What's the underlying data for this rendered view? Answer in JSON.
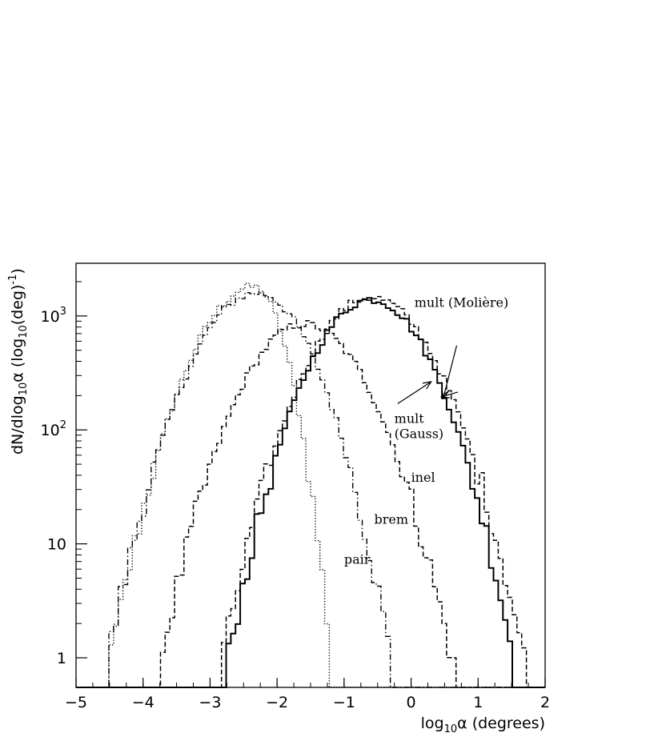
{
  "chart_data": {
    "type": "line",
    "subtype": "histogram",
    "title": "",
    "xlabel_parts": [
      "log",
      "10",
      "α (degrees)"
    ],
    "ylabel_parts": [
      "dN/dlog",
      "10",
      "α (log",
      "10",
      "(deg)",
      "-1",
      ")"
    ],
    "xlim": [
      -5,
      2
    ],
    "ylim": [
      0.55,
      2900
    ],
    "yscale": "log",
    "grid": false,
    "legend": "none",
    "x_ticks": [
      {
        "value": -5,
        "label": "−5"
      },
      {
        "value": -4,
        "label": "−4"
      },
      {
        "value": -3,
        "label": "−3"
      },
      {
        "value": -2,
        "label": "−2"
      },
      {
        "value": -1,
        "label": "−1"
      },
      {
        "value": 0,
        "label": "0"
      },
      {
        "value": 1,
        "label": "1"
      },
      {
        "value": 2,
        "label": "2"
      }
    ],
    "y_ticks": [
      {
        "value": 1,
        "base": "1",
        "exp": ""
      },
      {
        "value": 10,
        "base": "10",
        "exp": ""
      },
      {
        "value": 100,
        "base": "10",
        "exp": "2"
      },
      {
        "value": 1000,
        "base": "10",
        "exp": "3"
      }
    ],
    "series": [
      {
        "key": "pair",
        "style": "dotted",
        "peak_x": -2.35,
        "peak_y": 1800,
        "width_left": 0.55,
        "width_right": 0.3,
        "tail_left": 0.5
      },
      {
        "key": "brem",
        "style": "dashdot",
        "peak_x": -2.3,
        "peak_y": 1600,
        "width_left": 0.58,
        "width_right": 0.52,
        "tail_left": 0.5
      },
      {
        "key": "inel",
        "style": "dashed",
        "peak_x": -1.6,
        "peak_y": 850,
        "width_left": 0.58,
        "width_right": 0.6,
        "tail_left": 0.6
      },
      {
        "key": "mult_gauss",
        "style": "solid",
        "peak_x": -0.6,
        "peak_y": 1400,
        "width_left": 0.56,
        "width_right": 0.56,
        "tail_left": 0.6
      },
      {
        "key": "mult_moliere",
        "style": "dashed",
        "peak_x": -0.6,
        "peak_y": 1450,
        "width_left": 0.58,
        "width_right": 0.6,
        "tail_left": 0.6
      }
    ],
    "annotations": [
      {
        "text": "mult (Molière)",
        "x": 0.05,
        "y": 1200
      },
      {
        "text": "mult",
        "x": -0.25,
        "y": 115
      },
      {
        "text": "(Gauss)",
        "x": -0.25,
        "y": 85
      },
      {
        "text": "inel",
        "x": 0.0,
        "y": 35
      },
      {
        "text": "brem",
        "x": -0.55,
        "y": 15
      },
      {
        "text": "pair",
        "x": -1.0,
        "y": 6.7
      }
    ],
    "arrows": [
      {
        "from": [
          -0.2,
          170
        ],
        "to": [
          0.3,
          265
        ]
      },
      {
        "from": [
          0.68,
          550
        ],
        "to": [
          0.48,
          190
        ]
      },
      {
        "from": [
          0.7,
          215
        ],
        "to": [
          0.45,
          195
        ]
      }
    ]
  }
}
